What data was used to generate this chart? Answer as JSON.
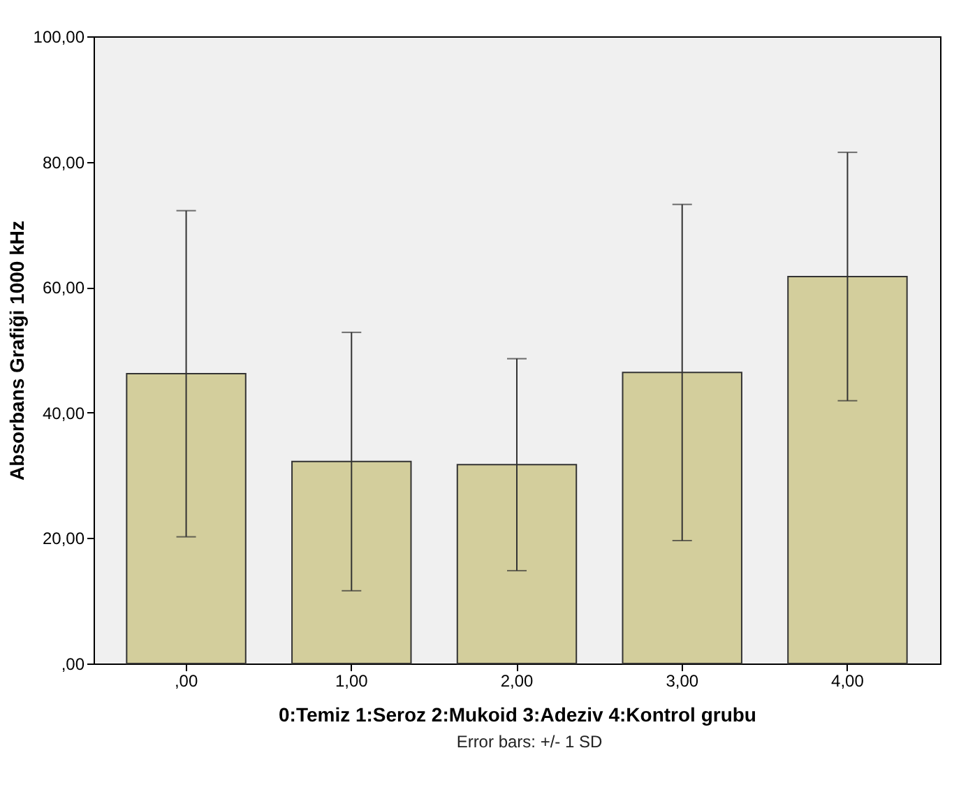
{
  "chart_data": {
    "type": "bar",
    "xlabel": "0:Temiz 1:Seroz 2:Mukoid 3:Adeziv 4:Kontrol grubu",
    "ylabel": "Absorbans Grafiği 1000 kHz",
    "categories": [
      ",00",
      "1,00",
      "2,00",
      "3,00",
      "4,00"
    ],
    "values": [
      46.2,
      32.2,
      31.7,
      46.4,
      61.7
    ],
    "errors": [
      26,
      20.6,
      16.9,
      26.8,
      19.8
    ],
    "color": "#d3ce9c",
    "ylim": [
      0,
      100
    ],
    "yticks": [
      {
        "value": 0,
        "label": ",00"
      },
      {
        "value": 20,
        "label": "20,00"
      },
      {
        "value": 40,
        "label": "40,00"
      },
      {
        "value": 60,
        "label": "60,00"
      },
      {
        "value": 80,
        "label": "80,00"
      },
      {
        "value": 100,
        "label": "100,00"
      }
    ],
    "annotations": [
      "Error bars: +/- 1 SD"
    ]
  }
}
